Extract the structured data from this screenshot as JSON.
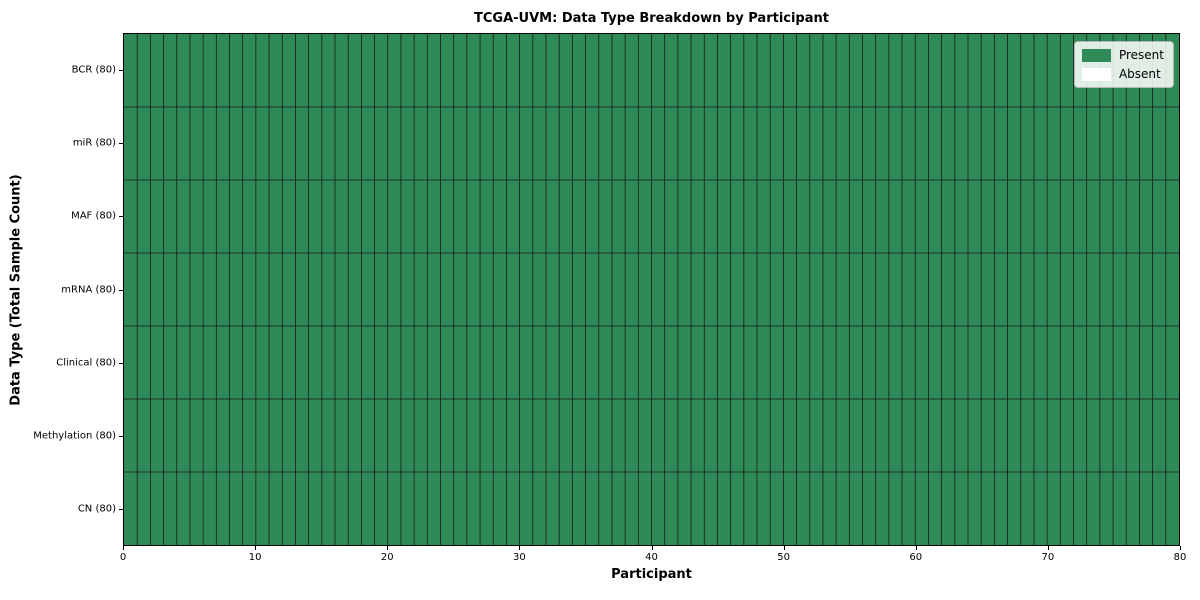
{
  "chart_data": {
    "type": "heatmap",
    "title": "TCGA-UVM: Data Type Breakdown by Participant",
    "xlabel": "Participant",
    "ylabel": "Data Type (Total Sample Count)",
    "xlim": [
      0,
      80
    ],
    "x_ticks": [
      0,
      10,
      20,
      30,
      40,
      50,
      60,
      70,
      80
    ],
    "n_participants": 80,
    "rows_top_to_bottom": [
      {
        "label": "BCR (80)",
        "data_type": "BCR",
        "total_samples": 80,
        "present_count": 80
      },
      {
        "label": "miR (80)",
        "data_type": "miR",
        "total_samples": 80,
        "present_count": 80
      },
      {
        "label": "MAF (80)",
        "data_type": "MAF",
        "total_samples": 80,
        "present_count": 80
      },
      {
        "label": "mRNA (80)",
        "data_type": "mRNA",
        "total_samples": 80,
        "present_count": 80
      },
      {
        "label": "Clinical (80)",
        "data_type": "Clinical",
        "total_samples": 80,
        "present_count": 80
      },
      {
        "label": "Methylation (80)",
        "data_type": "Methylation",
        "total_samples": 80,
        "present_count": 80
      },
      {
        "label": "CN (80)",
        "data_type": "CN",
        "total_samples": 80,
        "present_count": 80
      }
    ],
    "legend": [
      {
        "label": "Present",
        "color": "#2e8b57"
      },
      {
        "label": "Absent",
        "color": "#ffffff"
      }
    ],
    "colors": {
      "present": "#2e8b57",
      "absent": "#ffffff",
      "grid_line": "#1a1a1a",
      "spine": "#000000"
    },
    "legend_position": "upper right",
    "grid": true
  }
}
